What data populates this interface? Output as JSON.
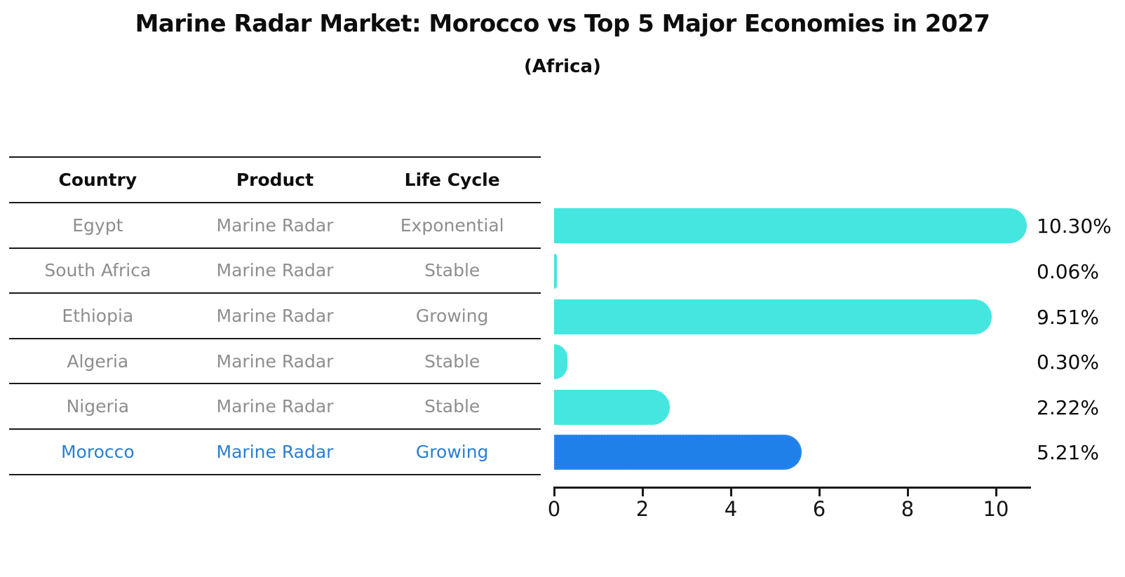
{
  "title": "Marine Radar Market: Morocco vs Top 5 Major Economies in 2027",
  "subtitle": "(Africa)",
  "table": {
    "headers": [
      "Country",
      "Product",
      "Life Cycle"
    ],
    "rows": [
      {
        "country": "Egypt",
        "product": "Marine Radar",
        "life_cycle": "Exponential"
      },
      {
        "country": "South Africa",
        "product": "Marine Radar",
        "life_cycle": "Stable"
      },
      {
        "country": "Ethiopia",
        "product": "Marine Radar",
        "life_cycle": "Growing"
      },
      {
        "country": "Algeria",
        "product": "Marine Radar",
        "life_cycle": "Stable"
      },
      {
        "country": "Nigeria",
        "product": "Marine Radar",
        "life_cycle": "Stable"
      },
      {
        "country": "Morocco",
        "product": "Marine Radar",
        "life_cycle": "Growing"
      }
    ]
  },
  "chart_data": {
    "type": "bar",
    "orientation": "horizontal",
    "title": "Marine Radar Market: Morocco vs Top 5 Major Economies in 2027",
    "subtitle": "(Africa)",
    "categories": [
      "Egypt",
      "South Africa",
      "Ethiopia",
      "Algeria",
      "Nigeria",
      "Morocco"
    ],
    "values": [
      10.3,
      0.06,
      9.51,
      0.3,
      2.22,
      5.21
    ],
    "value_labels": [
      "10.30%",
      "0.06%",
      "9.51%",
      "0.30%",
      "2.22%",
      "5.21%"
    ],
    "x_ticks": [
      "0",
      "2",
      "4",
      "6",
      "8",
      "10"
    ],
    "xlim": [
      0,
      10.8
    ],
    "highlight_category": "Morocco",
    "grid": false,
    "legend": false
  },
  "colors": {
    "bar_default": "#45E6E0",
    "bar_highlight": "#1E80E8",
    "bar_highlight_edge": "#3b8ff0",
    "row_text_gray": "#8e8e8e",
    "highlight_text_blue": "#2b7ed3",
    "axis_black": "#1a1a1a"
  }
}
